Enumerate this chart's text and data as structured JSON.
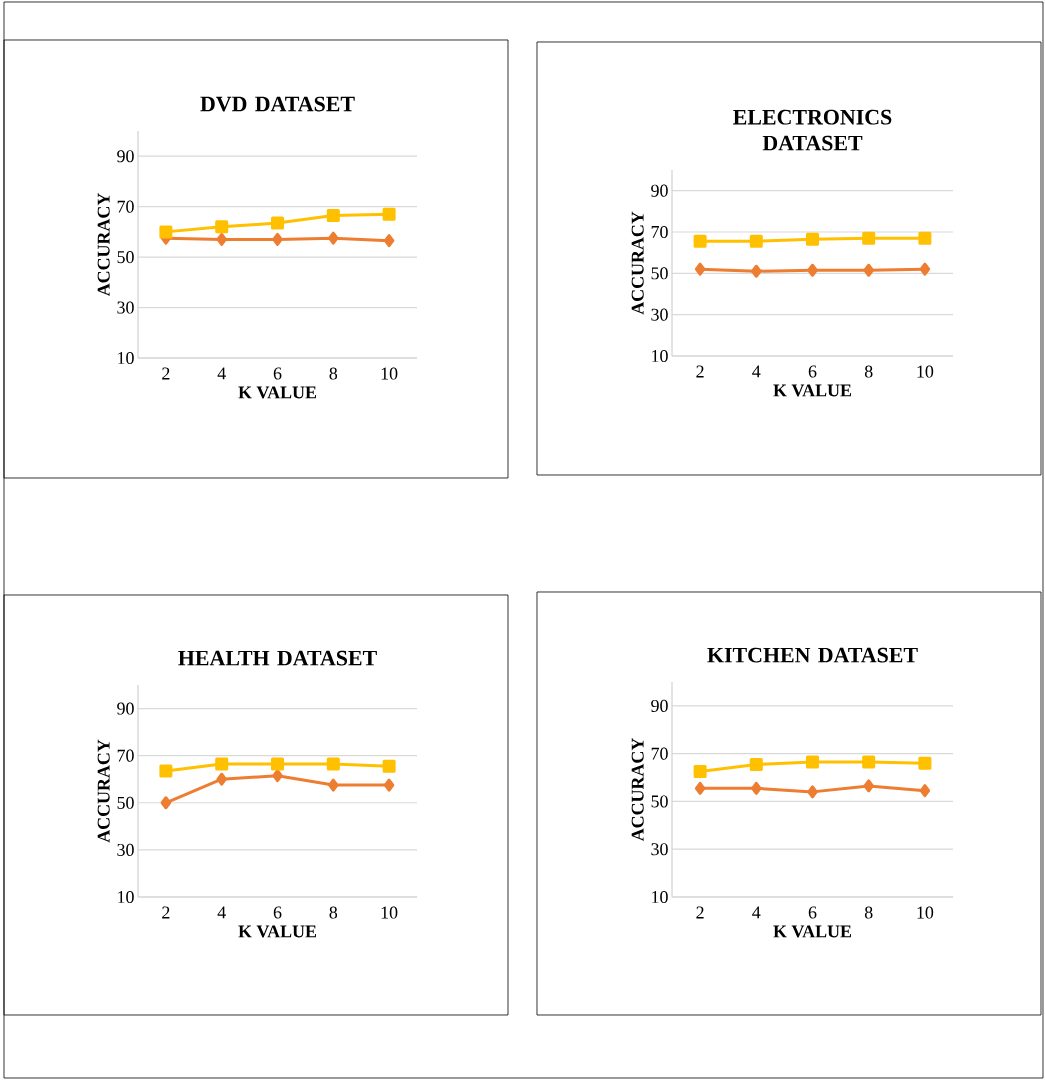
{
  "chart_data": [
    {
      "type": "line",
      "title": "DVD DATASET",
      "xlabel": "K VALUE",
      "ylabel": "ACCURACY",
      "categories": [
        "2",
        "4",
        "6",
        "8",
        "10"
      ],
      "ylim": [
        10,
        100
      ],
      "yticks": [
        10,
        30,
        50,
        70,
        90
      ],
      "grid": "y",
      "series": [
        {
          "color": "#ed7d31",
          "marker": "diamond",
          "values": [
            57.5,
            57,
            57,
            57.5,
            56.5
          ]
        },
        {
          "color": "#ffc000",
          "marker": "square",
          "values": [
            60,
            62,
            63.5,
            66.5,
            67
          ]
        }
      ]
    },
    {
      "type": "line",
      "title": "ELECTRONICS DATASET",
      "xlabel": "K VALUE",
      "ylabel": "ACCURACY",
      "categories": [
        "2",
        "4",
        "6",
        "8",
        "10"
      ],
      "ylim": [
        10,
        100
      ],
      "yticks": [
        10,
        30,
        50,
        70,
        90
      ],
      "grid": "y",
      "series": [
        {
          "color": "#ed7d31",
          "marker": "diamond",
          "values": [
            52,
            51,
            51.5,
            51.5,
            52
          ]
        },
        {
          "color": "#ffc000",
          "marker": "square",
          "values": [
            65.5,
            65.5,
            66.5,
            67,
            67
          ]
        }
      ]
    },
    {
      "type": "line",
      "title": "HEALTH DATASET",
      "xlabel": "K VALUE",
      "ylabel": "ACCURACY",
      "categories": [
        "2",
        "4",
        "6",
        "8",
        "10"
      ],
      "ylim": [
        10,
        100
      ],
      "yticks": [
        10,
        30,
        50,
        70,
        90
      ],
      "grid": "y",
      "series": [
        {
          "color": "#ed7d31",
          "marker": "diamond",
          "values": [
            50,
            60,
            61.5,
            57.5,
            57.5
          ]
        },
        {
          "color": "#ffc000",
          "marker": "square",
          "values": [
            63.5,
            66.5,
            66.5,
            66.5,
            65.5
          ]
        }
      ]
    },
    {
      "type": "line",
      "title": "KITCHEN DATASET",
      "xlabel": "K VALUE",
      "ylabel": "ACCURACY",
      "categories": [
        "2",
        "4",
        "6",
        "8",
        "10"
      ],
      "ylim": [
        10,
        100
      ],
      "yticks": [
        10,
        30,
        50,
        70,
        90
      ],
      "grid": "y",
      "series": [
        {
          "color": "#ed7d31",
          "marker": "diamond",
          "values": [
            55.5,
            55.5,
            54,
            56.5,
            54.5
          ]
        },
        {
          "color": "#ffc000",
          "marker": "square",
          "values": [
            62.5,
            65.5,
            66.5,
            66.5,
            66
          ]
        }
      ]
    }
  ]
}
